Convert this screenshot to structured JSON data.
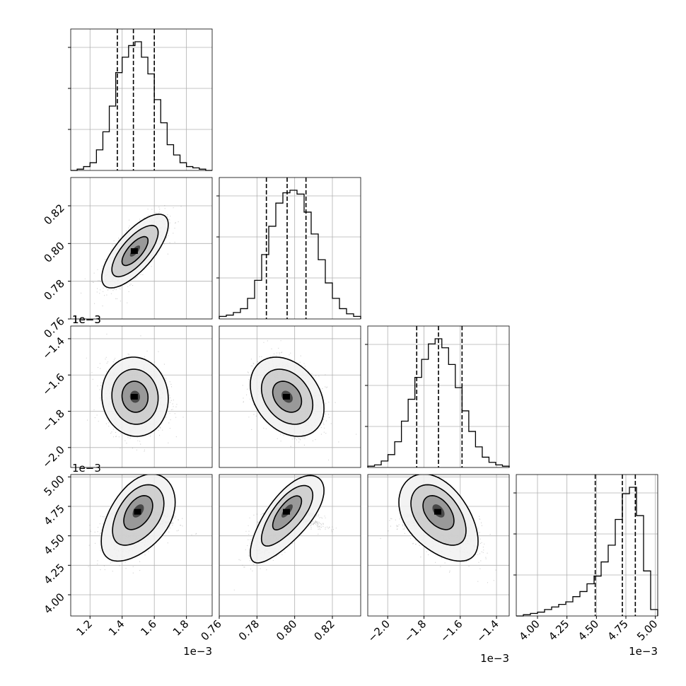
{
  "chart_data": {
    "type": "corner",
    "parameters": 4,
    "offset_labels": {
      "x": [
        "1e−3",
        "",
        "1e−3",
        "1e−3"
      ],
      "y": [
        "",
        "",
        "1e−3",
        "1e−3"
      ]
    },
    "ranges": [
      [
        1.08,
        1.96
      ],
      [
        0.76,
        0.835
      ],
      [
        -2.11,
        -1.33
      ],
      [
        3.82,
        5.02
      ]
    ],
    "ticks": [
      {
        "values": [
          1.2,
          1.4,
          1.6,
          1.8
        ],
        "labels": [
          "1.2",
          "1.4",
          "1.6",
          "1.8"
        ]
      },
      {
        "values": [
          0.76,
          0.78,
          0.8,
          0.82
        ],
        "labels": [
          "0.76",
          "0.78",
          "0.80",
          "0.82"
        ]
      },
      {
        "values": [
          -2.0,
          -1.8,
          -1.6,
          -1.4
        ],
        "labels": [
          "−2.0",
          "−1.8",
          "−1.6",
          "−1.4"
        ]
      },
      {
        "values": [
          4.0,
          4.25,
          4.5,
          4.75,
          5.0
        ],
        "labels": [
          "4.00",
          "4.25",
          "4.50",
          "4.75",
          "5.00"
        ]
      }
    ],
    "quantiles": [
      [
        1.37,
        1.47,
        1.6
      ],
      [
        0.785,
        0.796,
        0.806
      ],
      [
        -1.84,
        -1.72,
        -1.59
      ],
      [
        4.49,
        4.72,
        4.83
      ]
    ],
    "histograms": [
      {
        "edges_start": 1.08,
        "edges_end": 1.96,
        "counts": [
          0,
          0.01,
          0.03,
          0.06,
          0.16,
          0.3,
          0.5,
          0.76,
          0.88,
          0.97,
          1.0,
          0.88,
          0.75,
          0.55,
          0.37,
          0.2,
          0.12,
          0.06,
          0.03,
          0.02,
          0.01,
          0.0
        ]
      },
      {
        "edges_start": 0.76,
        "edges_end": 0.835,
        "counts": [
          0.02,
          0.03,
          0.05,
          0.08,
          0.16,
          0.3,
          0.5,
          0.72,
          0.9,
          0.98,
          1.0,
          0.97,
          0.83,
          0.66,
          0.46,
          0.28,
          0.16,
          0.08,
          0.04,
          0.02
        ]
      },
      {
        "edges_start": -2.11,
        "edges_end": -1.33,
        "counts": [
          0.01,
          0.02,
          0.05,
          0.1,
          0.2,
          0.36,
          0.53,
          0.7,
          0.84,
          0.96,
          1.0,
          0.93,
          0.8,
          0.62,
          0.44,
          0.28,
          0.16,
          0.08,
          0.04,
          0.02,
          0.01
        ]
      },
      {
        "edges_start": 3.82,
        "edges_end": 5.02,
        "counts": [
          0.0,
          0.01,
          0.02,
          0.03,
          0.05,
          0.07,
          0.09,
          0.11,
          0.15,
          0.19,
          0.25,
          0.31,
          0.42,
          0.55,
          0.75,
          0.95,
          1.0,
          0.78,
          0.35,
          0.05
        ]
      }
    ],
    "scatter_pairs": [
      {
        "x": 0,
        "y": 1,
        "center": [
          1.48,
          0.796
        ],
        "std": [
          0.09,
          0.0085
        ],
        "rho": 0.72
      },
      {
        "x": 0,
        "y": 2,
        "center": [
          1.48,
          -1.72
        ],
        "std": [
          0.09,
          0.095
        ],
        "rho": -0.05
      },
      {
        "x": 1,
        "y": 2,
        "center": [
          0.796,
          -1.72
        ],
        "std": [
          0.0085,
          0.095
        ],
        "rho": -0.3
      },
      {
        "x": 0,
        "y": 3,
        "center": [
          1.5,
          4.72
        ],
        "std": [
          0.1,
          0.16
        ],
        "rho": 0.45,
        "curve": 0.9
      },
      {
        "x": 1,
        "y": 3,
        "center": [
          0.796,
          4.72
        ],
        "std": [
          0.0085,
          0.16
        ],
        "rho": 0.72,
        "curve": 0.9
      },
      {
        "x": 2,
        "y": 3,
        "center": [
          -1.72,
          4.72
        ],
        "std": [
          0.095,
          0.16
        ],
        "rho": -0.45,
        "curve": 0.9
      }
    ]
  }
}
